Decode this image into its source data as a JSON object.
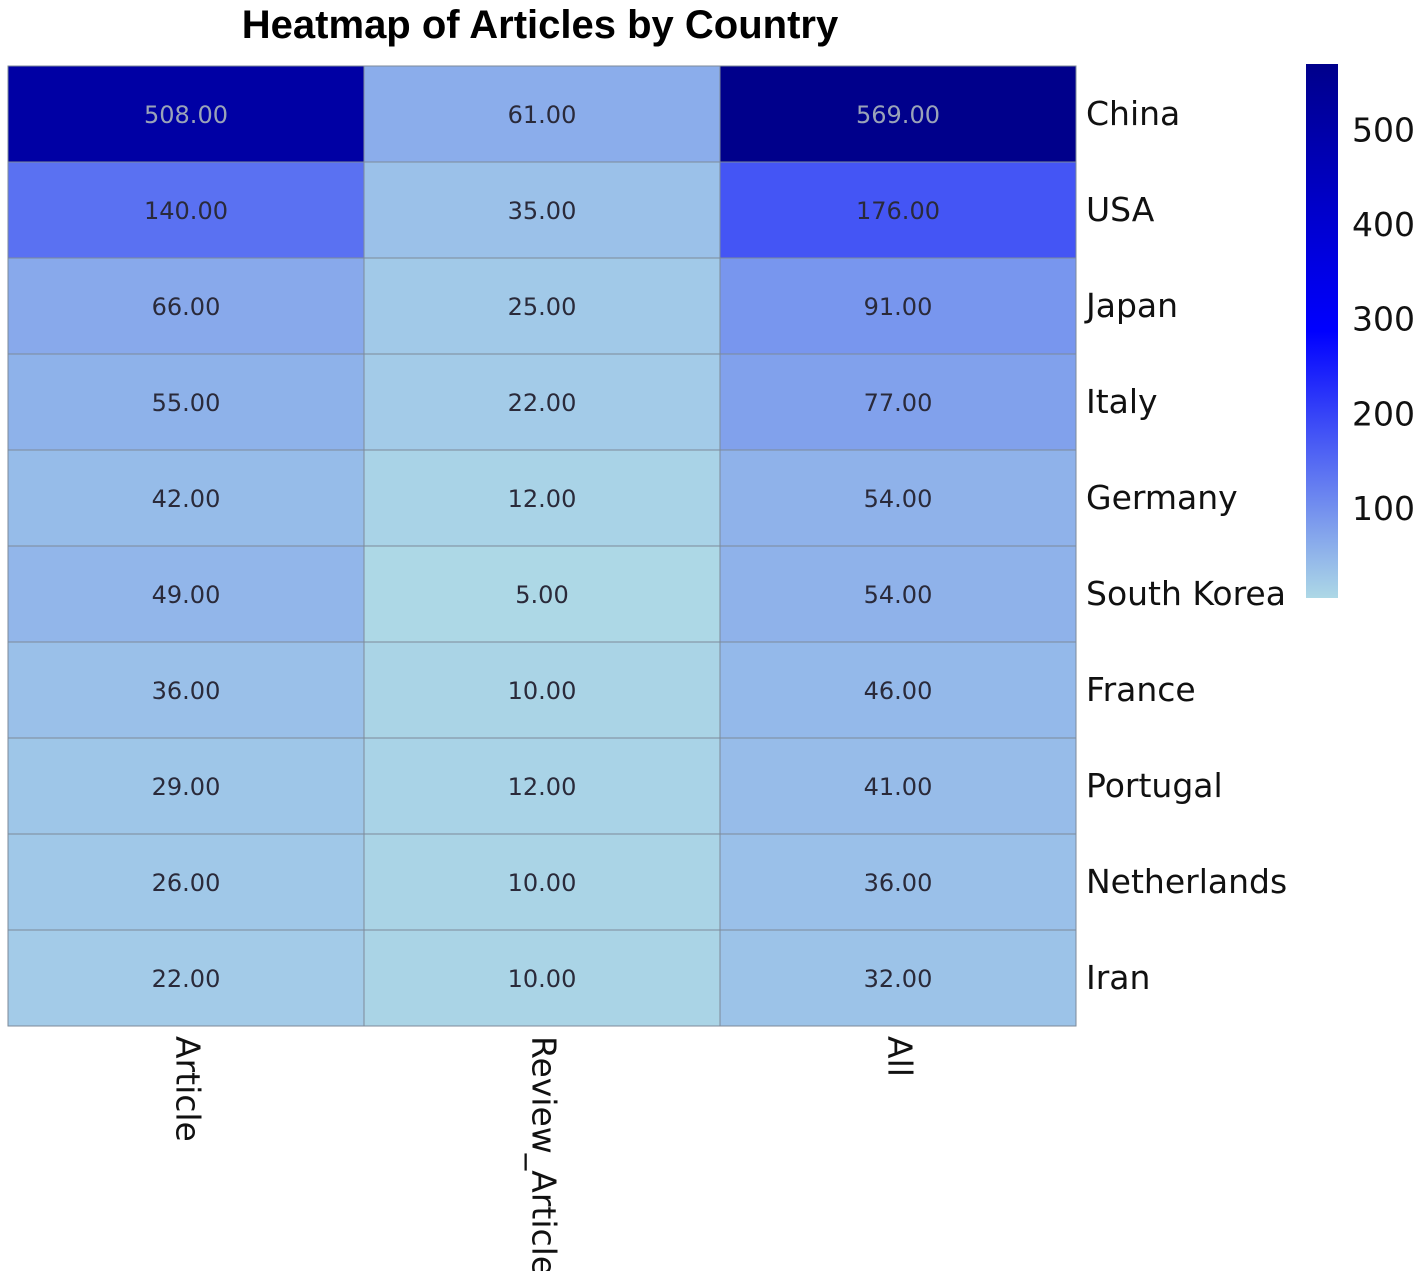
{
  "chart_data": {
    "type": "heatmap",
    "title": "Heatmap of Articles by Country",
    "columns": [
      "Article",
      "Review_Article",
      "All"
    ],
    "rows": [
      "China",
      "USA",
      "Japan",
      "Italy",
      "Germany",
      "South Korea",
      "France",
      "Portugal",
      "Netherlands",
      "Iran"
    ],
    "values": [
      [
        508,
        61,
        569
      ],
      [
        140,
        35,
        176
      ],
      [
        66,
        25,
        91
      ],
      [
        55,
        22,
        77
      ],
      [
        42,
        12,
        54
      ],
      [
        49,
        5,
        54
      ],
      [
        36,
        10,
        46
      ],
      [
        29,
        12,
        41
      ],
      [
        26,
        10,
        36
      ],
      [
        22,
        10,
        32
      ]
    ],
    "cell_labels": [
      [
        "508.00",
        "61.00",
        "569.00"
      ],
      [
        "140.00",
        "35.00",
        "176.00"
      ],
      [
        "66.00",
        "25.00",
        "91.00"
      ],
      [
        "55.00",
        "22.00",
        "77.00"
      ],
      [
        "42.00",
        "12.00",
        "54.00"
      ],
      [
        "49.00",
        "5.00",
        "54.00"
      ],
      [
        "36.00",
        "10.00",
        "46.00"
      ],
      [
        "29.00",
        "12.00",
        "41.00"
      ],
      [
        "26.00",
        "10.00",
        "36.00"
      ],
      [
        "22.00",
        "10.00",
        "32.00"
      ]
    ],
    "colorbar": {
      "range": [
        5,
        569
      ],
      "ticks": [
        100,
        200,
        300,
        400,
        500
      ],
      "tick_labels": [
        "100",
        "200",
        "300",
        "400",
        "500"
      ],
      "colors": [
        "#add8e6",
        "#0000ff",
        "#00008b"
      ],
      "position": "right"
    },
    "grid": true
  }
}
